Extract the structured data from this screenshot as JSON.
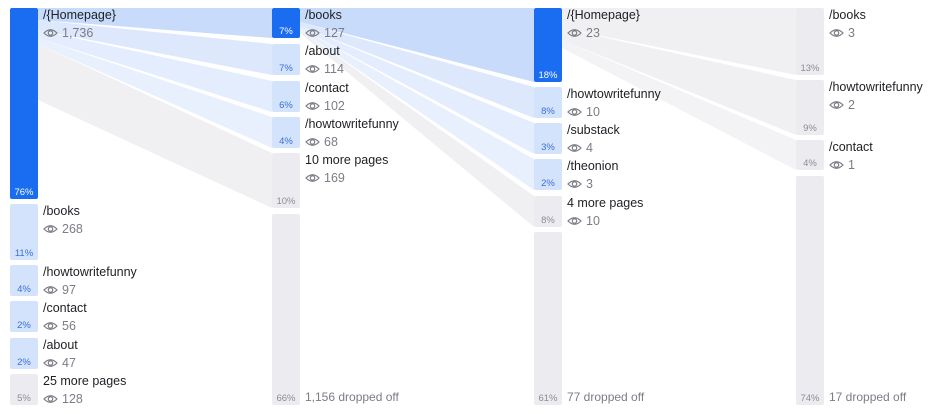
{
  "columns": [
    {
      "nodes": [
        {
          "label": "/{Homepage}",
          "views": "1,736",
          "percent": "76%"
        },
        {
          "label": "/books",
          "views": 268,
          "percent": "11%"
        },
        {
          "label": "/howtowritefunny",
          "views": 97,
          "percent": "4%"
        },
        {
          "label": "/contact",
          "views": 56,
          "percent": "2%"
        },
        {
          "label": "/about",
          "views": 47,
          "percent": "2%"
        },
        {
          "label": "25 more pages",
          "views": 128,
          "percent": "5%"
        }
      ]
    },
    {
      "nodes": [
        {
          "label": "/books",
          "views": 127,
          "percent": "7%"
        },
        {
          "label": "/about",
          "views": 114,
          "percent": "7%"
        },
        {
          "label": "/contact",
          "views": 102,
          "percent": "6%"
        },
        {
          "label": "/howtowritefunny",
          "views": 68,
          "percent": "4%"
        },
        {
          "label": "10 more pages",
          "views": 169,
          "percent": "10%"
        }
      ],
      "dropped": {
        "label": "1,156 dropped off",
        "percent": "66%"
      }
    },
    {
      "nodes": [
        {
          "label": "/{Homepage}",
          "views": 23,
          "percent": "18%"
        },
        {
          "label": "/howtowritefunny",
          "views": 10,
          "percent": "8%"
        },
        {
          "label": "/substack",
          "views": 4,
          "percent": "3%"
        },
        {
          "label": "/theonion",
          "views": 3,
          "percent": "2%"
        },
        {
          "label": "4 more pages",
          "views": 10,
          "percent": "8%"
        }
      ],
      "dropped": {
        "label": "77 dropped off",
        "percent": "61%"
      }
    },
    {
      "nodes": [
        {
          "label": "/books",
          "views": 3,
          "percent": "13%"
        },
        {
          "label": "/howtowritefunny",
          "views": 2,
          "percent": "9%"
        },
        {
          "label": "/contact",
          "views": 1,
          "percent": "4%"
        }
      ],
      "dropped": {
        "label": "17 dropped off",
        "percent": "74%"
      }
    }
  ]
}
